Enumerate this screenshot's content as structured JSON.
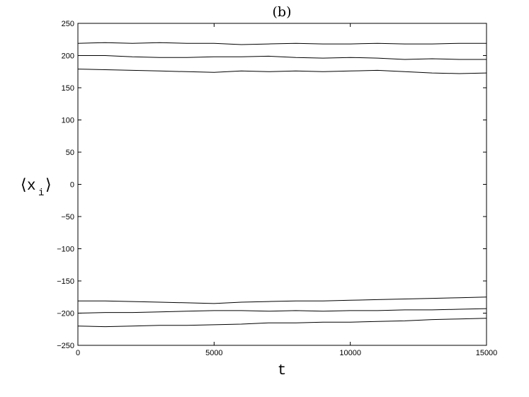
{
  "chart_data": {
    "type": "line",
    "title": "(b)",
    "xlabel": "t",
    "ylabel": "⟨x_i⟩",
    "ylabel_parts": {
      "left": "⟨",
      "var": "x",
      "sub": "i",
      "right": "⟩"
    },
    "xlim": [
      0,
      15000
    ],
    "ylim": [
      -250,
      250
    ],
    "xticks": [
      0,
      5000,
      10000,
      15000
    ],
    "yticks": [
      250,
      200,
      150,
      100,
      50,
      0,
      -50,
      -100,
      -150,
      -200,
      -250
    ],
    "grid": false,
    "line_color": "#000000",
    "series": [
      {
        "x": [
          0,
          1000,
          2000,
          3000,
          4000,
          5000,
          6000,
          7000,
          8000,
          9000,
          10000,
          11000,
          12000,
          13000,
          14000,
          15000
        ],
        "values": [
          219,
          220,
          219,
          220,
          219,
          219,
          217,
          218,
          219,
          218,
          218,
          219,
          218,
          218,
          219,
          219
        ]
      },
      {
        "x": [
          0,
          1000,
          2000,
          3000,
          4000,
          5000,
          6000,
          7000,
          8000,
          9000,
          10000,
          11000,
          12000,
          13000,
          14000,
          15000
        ],
        "values": [
          200,
          200,
          198,
          197,
          197,
          198,
          198,
          199,
          197,
          196,
          197,
          196,
          194,
          195,
          194,
          194
        ]
      },
      {
        "x": [
          0,
          1000,
          2000,
          3000,
          4000,
          5000,
          6000,
          7000,
          8000,
          9000,
          10000,
          11000,
          12000,
          13000,
          14000,
          15000
        ],
        "values": [
          179,
          178,
          177,
          176,
          175,
          174,
          176,
          175,
          176,
          175,
          176,
          177,
          175,
          173,
          172,
          173
        ]
      },
      {
        "x": [
          0,
          1000,
          2000,
          3000,
          4000,
          5000,
          6000,
          7000,
          8000,
          9000,
          10000,
          11000,
          12000,
          13000,
          14000,
          15000
        ],
        "values": [
          -181,
          -181,
          -182,
          -183,
          -184,
          -185,
          -183,
          -182,
          -181,
          -181,
          -180,
          -179,
          -178,
          -177,
          -176,
          -175
        ]
      },
      {
        "x": [
          0,
          1000,
          2000,
          3000,
          4000,
          5000,
          6000,
          7000,
          8000,
          9000,
          10000,
          11000,
          12000,
          13000,
          14000,
          15000
        ],
        "values": [
          -200,
          -199,
          -199,
          -198,
          -197,
          -196,
          -196,
          -197,
          -196,
          -197,
          -196,
          -196,
          -195,
          -195,
          -194,
          -193
        ]
      },
      {
        "x": [
          0,
          1000,
          2000,
          3000,
          4000,
          5000,
          6000,
          7000,
          8000,
          9000,
          10000,
          11000,
          12000,
          13000,
          14000,
          15000
        ],
        "values": [
          -220,
          -221,
          -220,
          -219,
          -219,
          -218,
          -217,
          -215,
          -215,
          -214,
          -214,
          -213,
          -212,
          -210,
          -209,
          -208
        ]
      }
    ]
  }
}
